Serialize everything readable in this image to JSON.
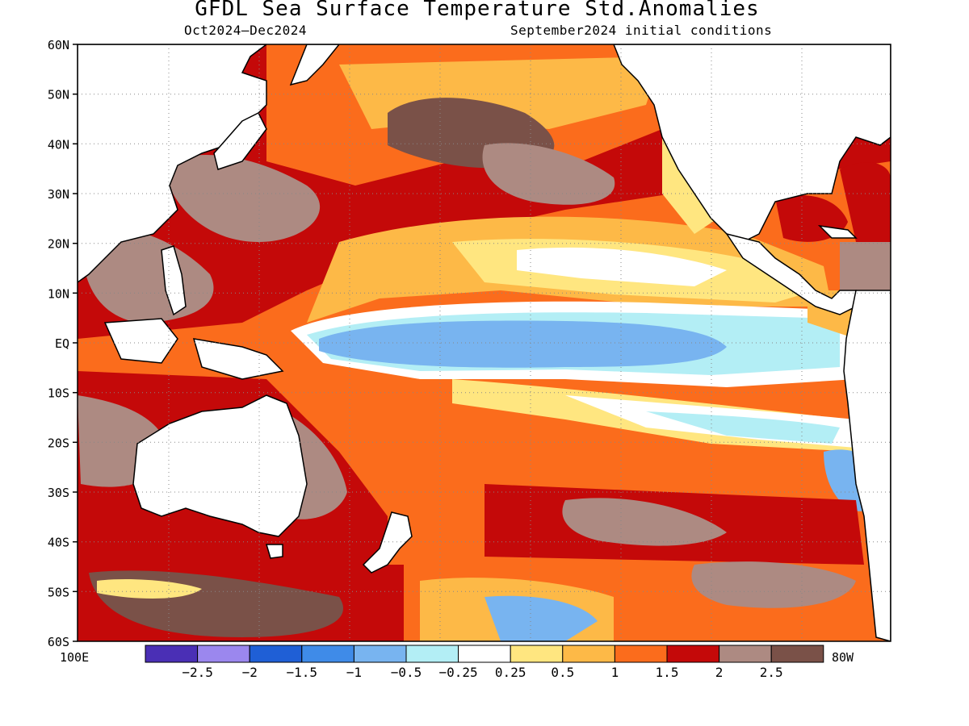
{
  "map": {
    "title": "GFDL Sea Surface Temperature Std.Anomalies",
    "subtitle_left": "Oct2024–Dec2024",
    "subtitle_right": "September2024 initial conditions",
    "lat_labels": [
      "60N",
      "50N",
      "40N",
      "30N",
      "20N",
      "10N",
      "EQ",
      "10S",
      "20S",
      "30S",
      "40S",
      "50S",
      "60S"
    ],
    "lon_labels": {
      "left": "100E",
      "right": "80W"
    }
  },
  "colorbar": {
    "colors": [
      "#4a2fb5",
      "#9b87ee",
      "#1f5fd6",
      "#3f8be8",
      "#78b4f0",
      "#b3eef5",
      "#ffffff",
      "#ffe680",
      "#fdb947",
      "#fb6c1c",
      "#c40909",
      "#ad8a82",
      "#7a5148"
    ],
    "labels": [
      "-2.5",
      "-2",
      "-1.5",
      "-1",
      "-0.5",
      "-0.25",
      "0.25",
      "0.5",
      "1",
      "1.5",
      "2",
      "2.5"
    ]
  }
}
